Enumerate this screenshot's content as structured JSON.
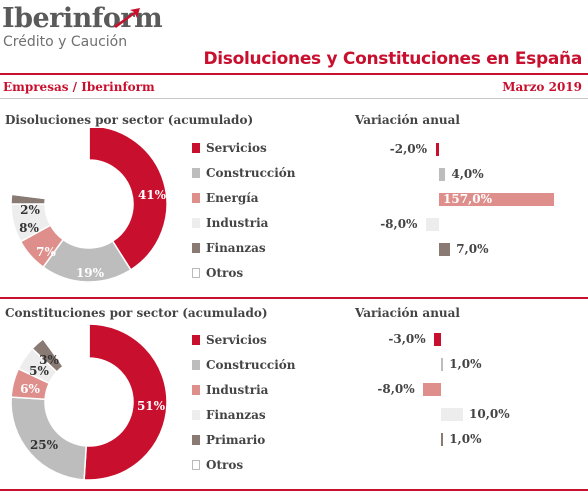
{
  "header": {
    "logo_main": "Iberinform",
    "logo_sub": "Crédito y Caución",
    "title": "Disoluciones y Constituciones en España",
    "left_label": "Empresas / Iberinform",
    "right_label": "Marzo 2019"
  },
  "colors": {
    "accent": "#c8102e",
    "rule_gray": "#c8c8c8"
  },
  "chart_data": [
    {
      "type": "pie",
      "title": "Disoluciones por sector (acumulado)",
      "categories": [
        "Servicios",
        "Construcción",
        "Energía",
        "Industria",
        "Finanzas",
        "Otros"
      ],
      "values": [
        41,
        19,
        7,
        8,
        2,
        23
      ],
      "value_labels": [
        "41%",
        "19%",
        "7%",
        "8%",
        "2%",
        ""
      ],
      "colors": [
        "#c8102e",
        "#bdbdbd",
        "#de8f8b",
        "#ededed",
        "#8a7a74",
        "#ffffff"
      ]
    },
    {
      "type": "bar",
      "title": "Variación anual",
      "categories": [
        "Servicios",
        "Construcción",
        "Energía",
        "Industria",
        "Finanzas"
      ],
      "values": [
        -2.0,
        4.0,
        157.0,
        -8.0,
        7.0
      ],
      "value_labels": [
        "-2,0%",
        "4,0%",
        "157,0%",
        "-8,0%",
        "7,0%"
      ],
      "colors": [
        "#c8102e",
        "#bdbdbd",
        "#de8f8b",
        "#ededed",
        "#8a7a74"
      ]
    },
    {
      "type": "pie",
      "title": "Constituciones por sector (acumulado)",
      "categories": [
        "Servicios",
        "Construcción",
        "Industria",
        "Finanzas",
        "Primario",
        "Otros"
      ],
      "values": [
        51,
        25,
        6,
        5,
        3,
        10
      ],
      "value_labels": [
        "51%",
        "25%",
        "6%",
        "5%",
        "3%",
        ""
      ],
      "colors": [
        "#c8102e",
        "#bdbdbd",
        "#de8f8b",
        "#ededed",
        "#8a7a74",
        "#ffffff"
      ]
    },
    {
      "type": "bar",
      "title": "Variación anual",
      "categories": [
        "Servicios",
        "Construcción",
        "Industria",
        "Finanzas",
        "Primario"
      ],
      "values": [
        -3.0,
        1.0,
        -8.0,
        10.0,
        1.0
      ],
      "value_labels": [
        "-3,0%",
        "1,0%",
        "-8,0%",
        "10,0%",
        "1,0%"
      ],
      "colors": [
        "#c8102e",
        "#bdbdbd",
        "#de8f8b",
        "#ededed",
        "#8a7a74"
      ]
    }
  ]
}
